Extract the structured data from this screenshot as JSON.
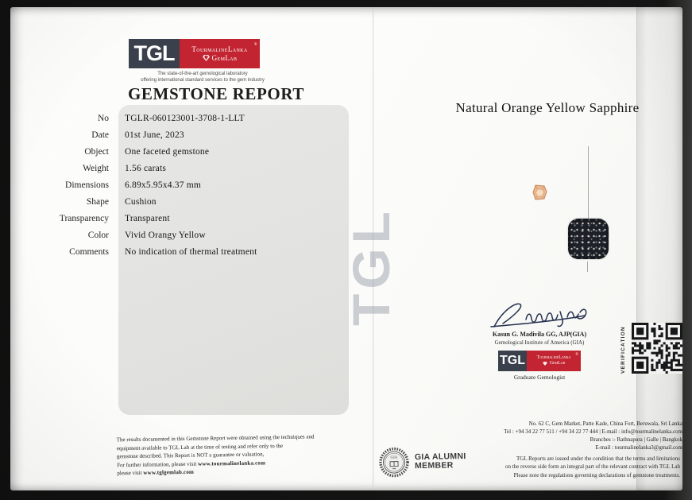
{
  "brand": {
    "abbr": "TGL",
    "name": "TourmalineLanka",
    "sub": "GemLab",
    "registered": "®",
    "tagline1": "The state-of-the-art gemological laboratory",
    "tagline2": "offering international standard services to the gem industry",
    "red": "#c22531",
    "dark": "#3a414d"
  },
  "report": {
    "title": "GEMSTONE REPORT",
    "fields": [
      {
        "label": "No",
        "value": "TGLR-060123001-3708-1-LLT"
      },
      {
        "label": "Date",
        "value": "01st June, 2023"
      },
      {
        "label": "Object",
        "value": "One faceted gemstone"
      },
      {
        "label": "Weight",
        "value": "1.56 carats"
      },
      {
        "label": "Dimensions",
        "value": "6.89x5.95x4.37 mm"
      },
      {
        "label": "Shape",
        "value": "Cushion"
      },
      {
        "label": "Transparency",
        "value": "Transparent"
      },
      {
        "label": "Color",
        "value": "Vivid Orangy Yellow"
      },
      {
        "label": "Comments",
        "value": "No indication of thermal treatment"
      }
    ]
  },
  "stone_title": "Natural Orange Yellow Sapphire",
  "watermark": "TGL",
  "signatory": {
    "name": "Kasun G. Madivila GG, AJP(GIA)",
    "institute": "Gemological Institute of America (GIA)",
    "role": "Graduate Gemologist"
  },
  "verification_label": "VERIFICATION",
  "gia_badge": {
    "line1": "GIA ALUMNI",
    "line2": "MEMBER"
  },
  "footer_left": {
    "line1": "The results documented in this Gemstone Report were obtained using the techniques and",
    "line2": "equipment available to TGL Lab at the time of testing and refer only to the",
    "line3": "gemstone described. This Report is NOT a guarantee or valuation,",
    "line4_prefix": "For further information, please visit ",
    "line4_url": "www.tourmalinelanka.com",
    "line5_prefix": "please visit ",
    "line5_url": "www.tglgemlab.com"
  },
  "address": {
    "line1": "No. 62 C, Gem Market, Patte Kade, China Fort, Beruwala, Sri Lanka",
    "line2": "Tel : +94 34 22 77 511 / +94 34 22 77 444  |  E-mail : info@tourmalinelanka.com",
    "line3": "Branches :- Rathnapura  |  Galle  |  Bangkok",
    "line4": "E-mail : tourmalinelanka3@gmail.com"
  },
  "terms": {
    "line1": "TGL Reports are issued under the condition that the terms and limitations",
    "line2": "on the reverse side form an integral part of the relevant contract with TGL Lab",
    "line3": "Please note the regulations governing declarations of gemstone treatments."
  }
}
